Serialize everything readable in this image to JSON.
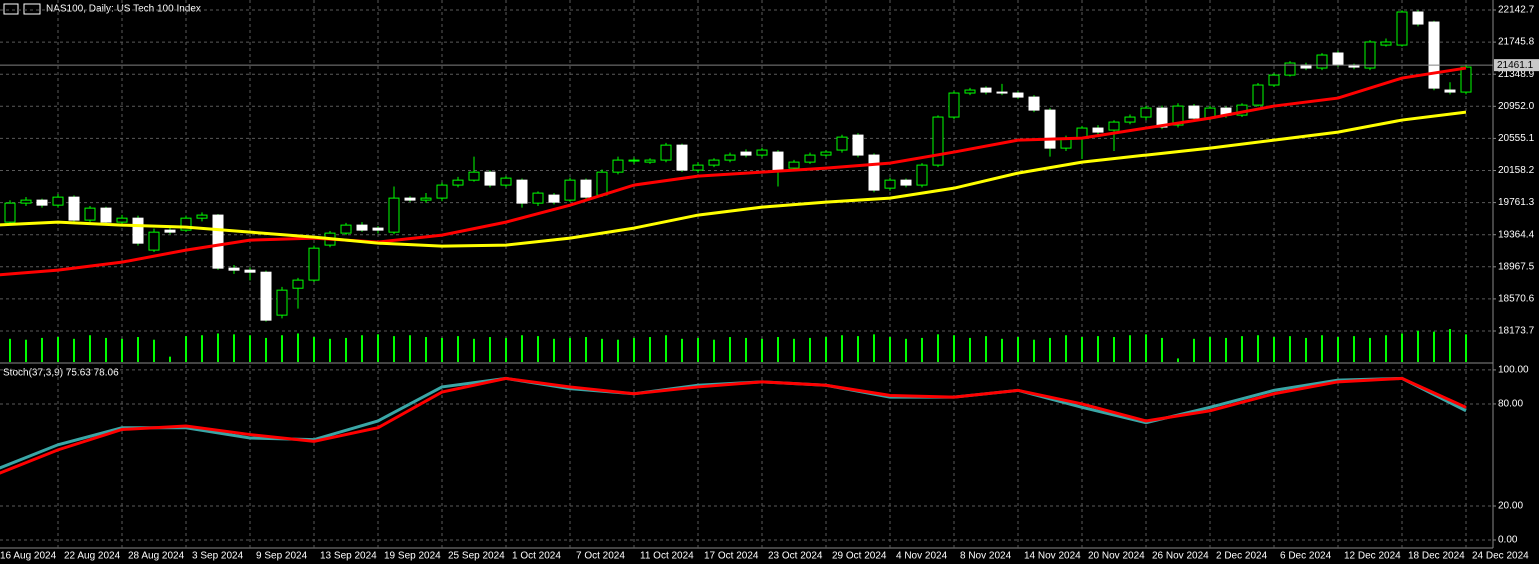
{
  "chart_data": [
    {
      "type": "candlestick",
      "title": "NAS100, Daily:  US Tech 100 Index",
      "categories": [
        "16 Aug 2024",
        null,
        null,
        null,
        "22 Aug 2024",
        null,
        null,
        null,
        "28 Aug 2024",
        null,
        null,
        null,
        "3 Sep 2024",
        null,
        null,
        null,
        "9 Sep 2024",
        null,
        null,
        null,
        "13 Sep 2024",
        null,
        null,
        null,
        "19 Sep 2024",
        null,
        null,
        null,
        "25 Sep 2024",
        null,
        null,
        null,
        "1 Oct 2024",
        null,
        null,
        null,
        "7 Oct 2024",
        null,
        null,
        null,
        "11 Oct 2024",
        null,
        null,
        null,
        "17 Oct 2024",
        null,
        null,
        null,
        "23 Oct 2024",
        null,
        null,
        null,
        "29 Oct 2024",
        null,
        null,
        null,
        "4 Nov 2024",
        null,
        null,
        null,
        "8 Nov 2024",
        null,
        null,
        null,
        "14 Nov 2024",
        null,
        null,
        null,
        "20 Nov 2024",
        null,
        null,
        null,
        "26 Nov 2024",
        null,
        null,
        null,
        "2 Dec 2024",
        null,
        null,
        null,
        "6 Dec 2024",
        null,
        null,
        null,
        "12 Dec 2024",
        null,
        null,
        null,
        "18 Dec 2024",
        null,
        null,
        null,
        "24 Dec 2024"
      ],
      "open": [
        19500,
        19520,
        19755,
        19792,
        19730,
        19829,
        19545,
        19693,
        19520,
        19569,
        19174,
        19421,
        19421,
        19569,
        19607,
        18951,
        18926,
        18901,
        18370,
        18703,
        18803,
        19236,
        19384,
        19483,
        19446,
        19396,
        19817,
        19792,
        19817,
        19978,
        20039,
        20138,
        19978,
        20039,
        19755,
        19854,
        19792,
        20039,
        19854,
        20138,
        20287,
        20262,
        20287,
        20472,
        20163,
        20225,
        20287,
        20386,
        20349,
        20386,
        20188,
        20262,
        20349,
        20411,
        20596,
        20349,
        19940,
        20039,
        19978,
        20225,
        20819,
        21116,
        21177,
        21128,
        21116,
        21066,
        20905,
        20435,
        20559,
        20683,
        20658,
        20757,
        20819,
        20930,
        20720,
        20955,
        20806,
        20930,
        20843,
        20967,
        21215,
        21338,
        21462,
        21425,
        21611,
        21462,
        21425,
        21709,
        21709,
        22118,
        21994,
        21153,
        21128
      ],
      "high": [
        19560,
        19790,
        19830,
        19810,
        19870,
        19850,
        19720,
        19710,
        19610,
        19600,
        19440,
        19470,
        19600,
        19640,
        19620,
        18990,
        18960,
        18920,
        18720,
        18830,
        19230,
        19410,
        19510,
        19520,
        19470,
        19960,
        19840,
        19880,
        20010,
        20080,
        20330,
        20160,
        20090,
        20060,
        19900,
        19880,
        20070,
        20060,
        20170,
        20330,
        20320,
        20310,
        20500,
        20490,
        20260,
        20310,
        20380,
        20420,
        20440,
        20410,
        20290,
        20380,
        20410,
        20600,
        20620,
        20370,
        20070,
        20060,
        20250,
        20840,
        21140,
        21180,
        21200,
        21230,
        21140,
        21090,
        20930,
        20590,
        20710,
        20720,
        20780,
        20850,
        20960,
        20960,
        20990,
        20980,
        20960,
        20950,
        20990,
        21240,
        21360,
        21510,
        21490,
        21610,
        21640,
        21480,
        21770,
        21790,
        22140,
        22140,
        22010,
        21250,
        21470
      ],
      "low": [
        19470,
        19500,
        19720,
        19700,
        19700,
        19520,
        19520,
        19480,
        19470,
        19230,
        19150,
        19370,
        19400,
        19530,
        18930,
        18880,
        18800,
        18290,
        18330,
        18450,
        18780,
        19210,
        19360,
        19400,
        19380,
        19370,
        19770,
        19760,
        19780,
        19950,
        20020,
        19950,
        19950,
        19700,
        19720,
        19740,
        19770,
        19800,
        19830,
        20110,
        20240,
        20240,
        20260,
        20140,
        20130,
        20200,
        20260,
        20320,
        20320,
        19960,
        20160,
        20240,
        20320,
        20380,
        20320,
        19890,
        19910,
        19950,
        19950,
        20200,
        20790,
        21090,
        21100,
        21090,
        21040,
        20880,
        20330,
        20400,
        20300,
        20600,
        20400,
        20730,
        20780,
        20670,
        20690,
        20780,
        20780,
        20810,
        20820,
        20950,
        21190,
        21320,
        21400,
        21400,
        21440,
        21410,
        21400,
        21690,
        21690,
        21940,
        21150,
        21100,
        21100
      ],
      "close": [
        19520,
        19755,
        19792,
        19730,
        19829,
        19545,
        19693,
        19520,
        19569,
        19260,
        19396,
        19396,
        19569,
        19607,
        18951,
        18926,
        18901,
        18308,
        18679,
        18803,
        19198,
        19384,
        19483,
        19421,
        19421,
        19817,
        19792,
        19817,
        19978,
        20039,
        20138,
        19978,
        20064,
        19755,
        19879,
        19767,
        20039,
        19829,
        20138,
        20287,
        20287,
        20287,
        20472,
        20163,
        20225,
        20287,
        20349,
        20349,
        20411,
        20163,
        20262,
        20349,
        20386,
        20571,
        20349,
        19916,
        20039,
        19978,
        20225,
        20819,
        21116,
        21153,
        21128,
        21116,
        21066,
        20905,
        20435,
        20559,
        20683,
        20633,
        20757,
        20819,
        20930,
        20695,
        20955,
        20806,
        20930,
        20843,
        20967,
        21215,
        21338,
        21487,
        21425,
        21586,
        21462,
        21437,
        21747,
        21747,
        22118,
        21969,
        21177,
        21128,
        21437
      ],
      "up_color": "#000000",
      "down_color": "#ffffff",
      "wick_color": "#00ff00",
      "volume": {
        "color": "#00ff00",
        "values": [
          24,
          26,
          25,
          27,
          28,
          26,
          30,
          27,
          26,
          28,
          25,
          6,
          29,
          30,
          32,
          31,
          30,
          27,
          30,
          32,
          28,
          26,
          27,
          30,
          31,
          29,
          30,
          28,
          27,
          29,
          26,
          28,
          27,
          30,
          29,
          26,
          27,
          28,
          26,
          25,
          27,
          28,
          30,
          26,
          27,
          25,
          28,
          27,
          26,
          28,
          26,
          27,
          28,
          30,
          29,
          31,
          28,
          26,
          27,
          31,
          30,
          27,
          29,
          26,
          28,
          25,
          27,
          30,
          28,
          29,
          28,
          30,
          31,
          27,
          4,
          26,
          28,
          27,
          29,
          30,
          28,
          29,
          27,
          30,
          28,
          29,
          27,
          30,
          32,
          35,
          34,
          37,
          31
        ]
      },
      "series": [
        {
          "color": "#ff0000",
          "x": [
            0,
            4,
            8,
            12,
            16,
            20,
            24,
            28,
            32,
            36,
            40,
            44,
            48,
            52,
            56,
            60,
            64,
            68,
            72,
            76,
            80,
            84,
            88,
            92
          ],
          "values": [
            18864,
            18926,
            19025,
            19174,
            19297,
            19322,
            19273,
            19359,
            19520,
            19730,
            19978,
            20089,
            20138,
            20188,
            20250,
            20386,
            20534,
            20559,
            20683,
            20806,
            20955,
            21054,
            21301,
            21425
          ]
        },
        {
          "color": "#ffff00",
          "x": [
            0,
            4,
            8,
            12,
            16,
            20,
            24,
            28,
            32,
            36,
            40,
            44,
            48,
            52,
            56,
            60,
            64,
            68,
            72,
            76,
            80,
            84,
            88,
            92
          ],
          "values": [
            19483,
            19520,
            19483,
            19458,
            19396,
            19334,
            19260,
            19223,
            19236,
            19322,
            19446,
            19607,
            19705,
            19767,
            19817,
            19940,
            20126,
            20262,
            20349,
            20435,
            20534,
            20633,
            20782,
            20880
          ]
        }
      ],
      "last_price": 21461.1,
      "ylim": [
        17790.6,
        22266.3
      ],
      "yticks": [
        22142.7,
        21745.8,
        21348.9,
        {
          "value": 20952,
          "label": "20952.0"
        },
        20555.1,
        20158.2,
        19761.3,
        19364.4,
        18967.5,
        18570.6,
        18173.7
      ],
      "grid": true
    },
    {
      "type": "line",
      "title": "Stoch(37,3,9) 75.63 78.06",
      "series": [
        {
          "color": "#3aa6a6",
          "x": [
            0,
            4,
            8,
            12,
            16,
            20,
            24,
            28,
            32,
            36,
            40,
            44,
            48,
            52,
            56,
            60,
            64,
            68,
            72,
            76,
            80,
            84,
            88,
            92
          ],
          "values": [
            41,
            56,
            66,
            66,
            60,
            59,
            70,
            90,
            95,
            89,
            86,
            91,
            93,
            91,
            84,
            84,
            88,
            78,
            69,
            78,
            88,
            94,
            95,
            76
          ]
        },
        {
          "color": "#ff0000",
          "x": [
            0,
            4,
            8,
            12,
            16,
            20,
            24,
            28,
            32,
            36,
            40,
            44,
            48,
            52,
            56,
            60,
            64,
            68,
            72,
            76,
            80,
            84,
            88,
            92
          ],
          "values": [
            38,
            53,
            65,
            67,
            62,
            58,
            66,
            87,
            95,
            90,
            86,
            90,
            93,
            91,
            85,
            84,
            88,
            80,
            70,
            76,
            86,
            93,
            95,
            78
          ]
        }
      ],
      "ylim": [
        -4.7,
        102.9
      ],
      "yticks": [
        {
          "value": 100,
          "label": "100.00"
        },
        {
          "value": 80,
          "label": "80.00"
        },
        {
          "value": 20,
          "label": "20.00"
        },
        {
          "value": 0,
          "label": "0.00"
        }
      ],
      "grid": true
    }
  ]
}
